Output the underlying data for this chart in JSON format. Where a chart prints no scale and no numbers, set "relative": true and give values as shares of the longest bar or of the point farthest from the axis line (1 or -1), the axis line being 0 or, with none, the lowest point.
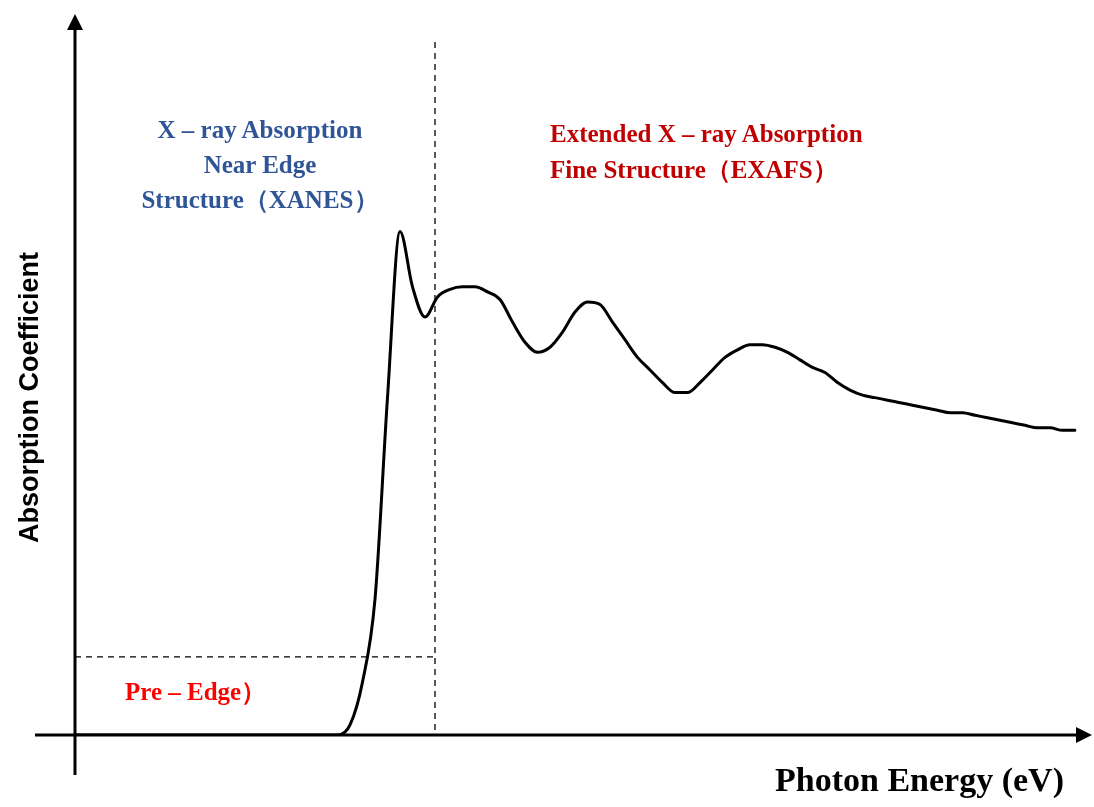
{
  "chart_data": {
    "type": "line",
    "relative": true,
    "xlabel": "Photon Energy (eV)",
    "ylabel": "Absorption Coefficient",
    "categories": [
      null,
      null,
      null,
      null,
      null,
      null,
      null,
      null,
      null,
      null,
      null,
      null,
      null,
      null,
      null,
      null,
      null,
      null,
      null,
      null,
      null,
      null,
      null,
      null,
      null,
      null,
      null,
      null,
      null,
      null,
      null,
      null,
      null,
      null,
      null,
      null,
      null,
      null,
      null,
      null,
      null,
      null,
      null,
      null,
      null,
      null,
      null,
      null,
      null,
      null,
      null,
      null,
      null,
      null,
      null,
      null,
      null,
      null,
      null,
      null,
      null,
      null,
      null,
      null,
      null,
      null,
      null,
      null,
      null,
      null,
      null,
      null,
      null,
      null,
      null,
      null,
      null,
      null,
      null,
      null,
      null
    ],
    "series": [
      {
        "color": "#000000",
        "values": [
          0,
          0,
          0,
          0,
          0,
          0,
          0,
          0,
          0,
          0,
          0,
          0,
          0,
          0,
          0,
          0,
          0,
          0,
          0,
          0,
          0,
          0,
          0.02,
          0.105,
          0.27,
          0.67,
          1,
          0.89,
          0.83,
          0.87,
          0.885,
          0.89,
          0.89,
          0.88,
          0.865,
          0.82,
          0.78,
          0.76,
          0.77,
          0.8,
          0.84,
          0.86,
          0.855,
          0.82,
          0.785,
          0.75,
          0.725,
          0.7,
          0.68,
          0.68,
          0.7,
          0.725,
          0.75,
          0.765,
          0.775,
          0.775,
          0.77,
          0.76,
          0.745,
          0.73,
          0.72,
          0.7,
          0.685,
          0.675,
          0.67,
          0.665,
          0.66,
          0.655,
          0.65,
          0.645,
          0.64,
          0.64,
          0.635,
          0.63,
          0.625,
          0.62,
          0.615,
          0.61,
          0.61,
          0.605,
          0.605
        ]
      }
    ],
    "ref_lines": [
      {
        "axis": "y",
        "value": 0.155,
        "line_style": "dashed",
        "color": "#000000"
      }
    ],
    "annotations": [
      "X – ray Absorption\nNear Edge\nStructure（XANES）",
      "Extended X – ray Absorption\nFine Structure（EXAFS）",
      "Pre – Edge）"
    ],
    "marker": "none",
    "line_style": "solid",
    "grid": false,
    "legend": false,
    "tick_labels": false
  }
}
